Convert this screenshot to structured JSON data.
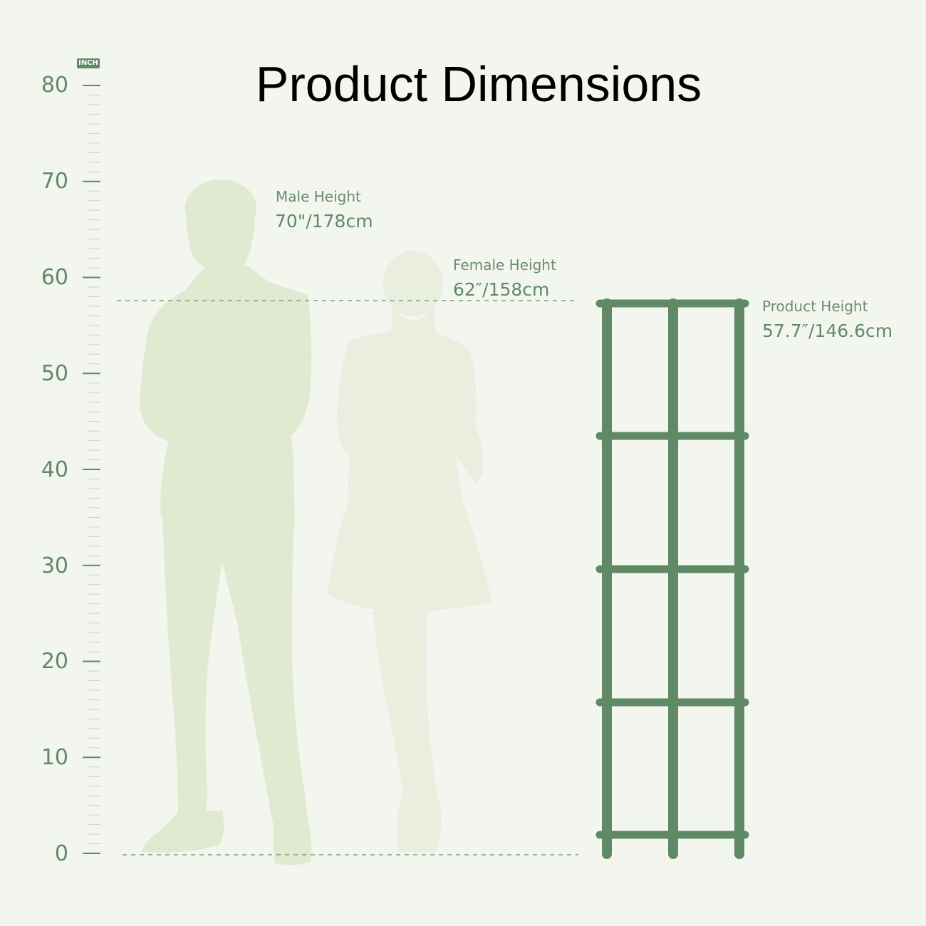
{
  "title": "Product Dimensions",
  "unit": "INCH",
  "axis": {
    "ticks": [
      "80",
      "70",
      "60",
      "50",
      "40",
      "30",
      "20",
      "10",
      "0"
    ]
  },
  "male": {
    "label": "Male Height",
    "value": "70\"/178cm"
  },
  "female": {
    "label": "Female Height",
    "value": "62″/158cm"
  },
  "product": {
    "label": "Product Height",
    "value": "57.7″/146.6cm"
  },
  "colors": {
    "background": "#f3f6ef",
    "accent": "#5f8a65",
    "male_silhouette": "#e1e9d1",
    "female_silhouette": "#e9eedf",
    "title": "#000000"
  }
}
